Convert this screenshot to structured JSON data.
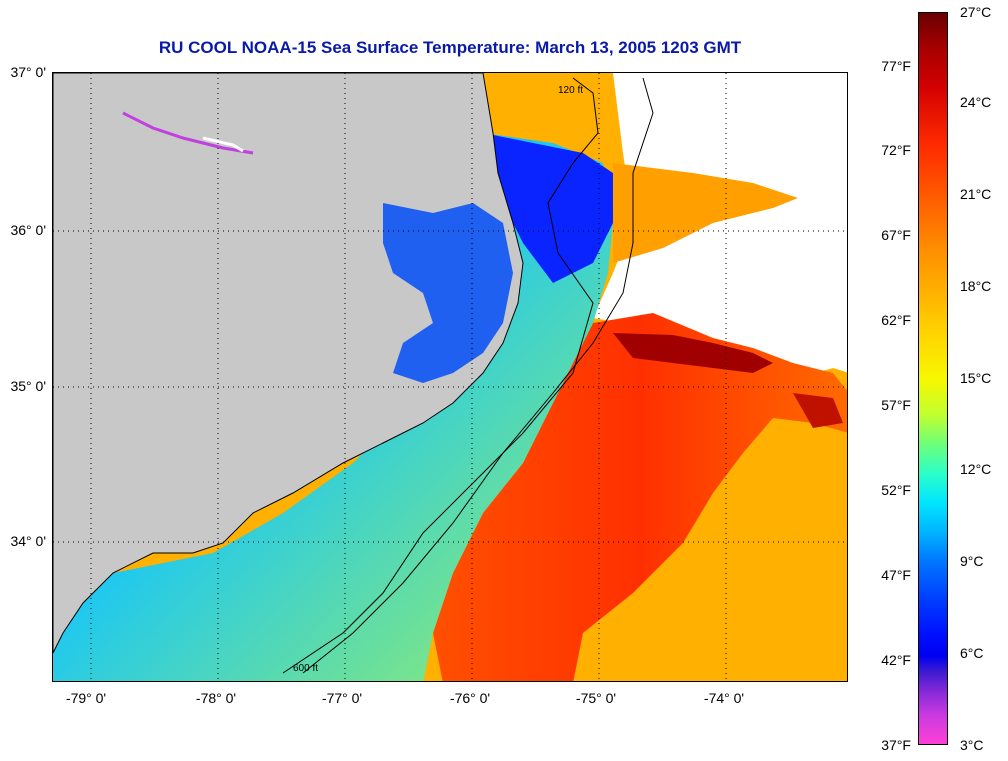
{
  "title": "RU COOL  NOAA-15  Sea Surface Temperature:  March 13, 2005 1203 GMT",
  "latitude_labels": [
    "37° 0'",
    "36° 0'",
    "35° 0'",
    "34° 0'"
  ],
  "longitude_labels": [
    "-79° 0'",
    "-78° 0'",
    "-77° 0'",
    "-76° 0'",
    "-75° 0'",
    "-74° 0'"
  ],
  "contour_labels": [
    "120 ft",
    "600 ft"
  ],
  "colorbar": {
    "celsius_labels": [
      "27°C",
      "24°C",
      "21°C",
      "18°C",
      "15°C",
      "12°C",
      "9°C",
      "6°C",
      "3°C"
    ],
    "fahrenheit_labels": [
      "77°F",
      "72°F",
      "67°F",
      "62°F",
      "57°F",
      "52°F",
      "47°F",
      "42°F",
      "37°F"
    ],
    "range_c": [
      3,
      27
    ],
    "range_f": [
      37,
      77
    ]
  },
  "colors": {
    "title": "#0a1aa8",
    "land": "#c8c8c8",
    "cloud_mask": "#ffffff",
    "coastal_cold": "#1f5fe8",
    "gulf_stream_warm": "#ff3a00",
    "hottest": "#8b0000",
    "mid_shelf": "#f0e800"
  }
}
